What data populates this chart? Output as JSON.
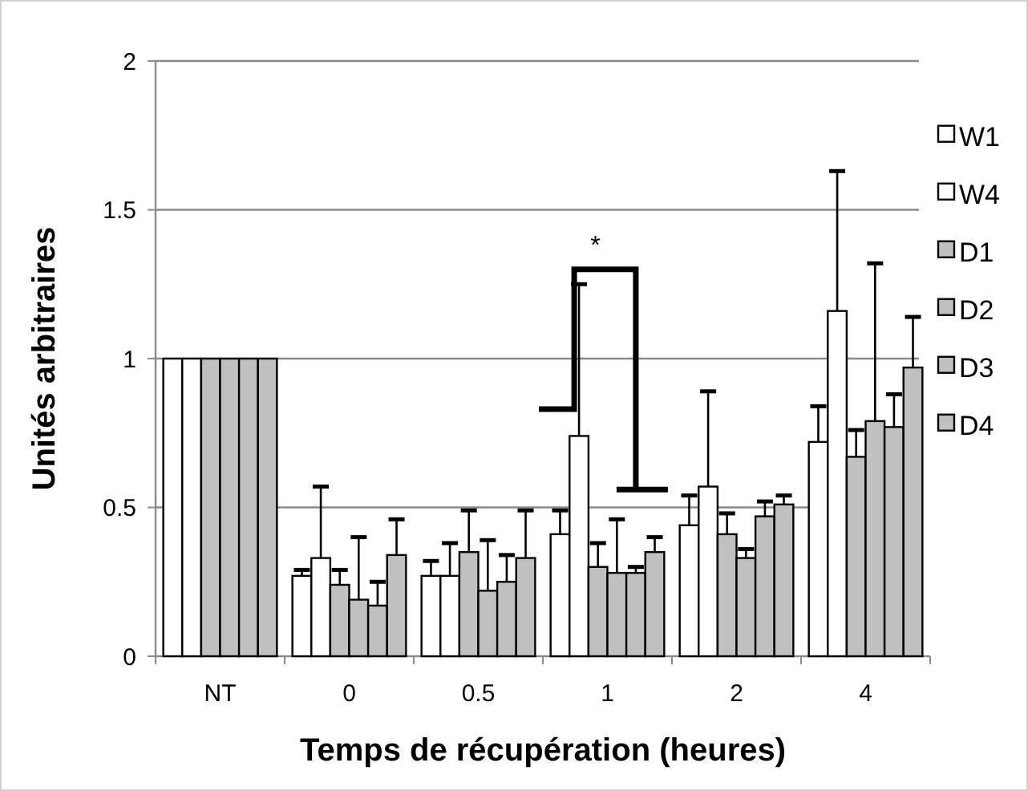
{
  "chart_data": {
    "type": "bar",
    "xlabel": "Temps de récupération (heures)",
    "ylabel": "Unités arbitraires",
    "categories": [
      "NT",
      "0",
      "0.5",
      "1",
      "2",
      "4"
    ],
    "ylim": [
      0,
      2
    ],
    "yticks": [
      0,
      0.5,
      1,
      1.5,
      2
    ],
    "grid": "y",
    "legend": "right",
    "annotations": [
      "*"
    ],
    "series": [
      {
        "name": "W1",
        "color": "#ffffff",
        "values": [
          1,
          0.27,
          0.27,
          0.41,
          0.44,
          0.72
        ],
        "errors": [
          null,
          [
            0.27,
            0.29
          ],
          [
            0.27,
            0.32
          ],
          [
            0.41,
            0.49
          ],
          [
            0.44,
            0.54
          ],
          [
            0.72,
            0.84
          ]
        ]
      },
      {
        "name": "W4",
        "color": "#ffffff",
        "values": [
          1,
          0.33,
          0.27,
          0.74,
          0.57,
          1.16
        ],
        "errors": [
          null,
          [
            0.33,
            0.57
          ],
          [
            0.27,
            0.38
          ],
          [
            0.74,
            1.25
          ],
          [
            0.57,
            0.89
          ],
          [
            1.16,
            1.63
          ]
        ]
      },
      {
        "name": "D1",
        "color": "#c0c0c0",
        "values": [
          1,
          0.24,
          0.35,
          0.3,
          0.41,
          0.67
        ],
        "errors": [
          null,
          [
            0.24,
            0.29
          ],
          [
            0.35,
            0.49
          ],
          [
            0.3,
            0.38
          ],
          [
            0.41,
            0.48
          ],
          [
            0.67,
            0.76
          ]
        ]
      },
      {
        "name": "D2",
        "color": "#c0c0c0",
        "values": [
          1,
          0.19,
          0.22,
          0.28,
          0.33,
          0.79
        ],
        "errors": [
          null,
          [
            0.19,
            0.4
          ],
          [
            0.22,
            0.39
          ],
          [
            0.28,
            0.46
          ],
          [
            0.33,
            0.36
          ],
          [
            0.79,
            1.32
          ]
        ]
      },
      {
        "name": "D3",
        "color": "#c0c0c0",
        "values": [
          1,
          0.17,
          0.25,
          0.28,
          0.47,
          0.77
        ],
        "errors": [
          null,
          [
            0.17,
            0.25
          ],
          [
            0.25,
            0.34
          ],
          [
            0.28,
            0.3
          ],
          [
            0.47,
            0.52
          ],
          [
            0.77,
            0.88
          ]
        ]
      },
      {
        "name": "D4",
        "color": "#c0c0c0",
        "values": [
          1,
          0.34,
          0.33,
          0.35,
          0.51,
          0.97
        ],
        "errors": [
          null,
          [
            0.34,
            0.46
          ],
          [
            0.33,
            0.49
          ],
          [
            0.35,
            0.4
          ],
          [
            0.51,
            0.54
          ],
          [
            0.97,
            1.14
          ]
        ]
      }
    ]
  }
}
